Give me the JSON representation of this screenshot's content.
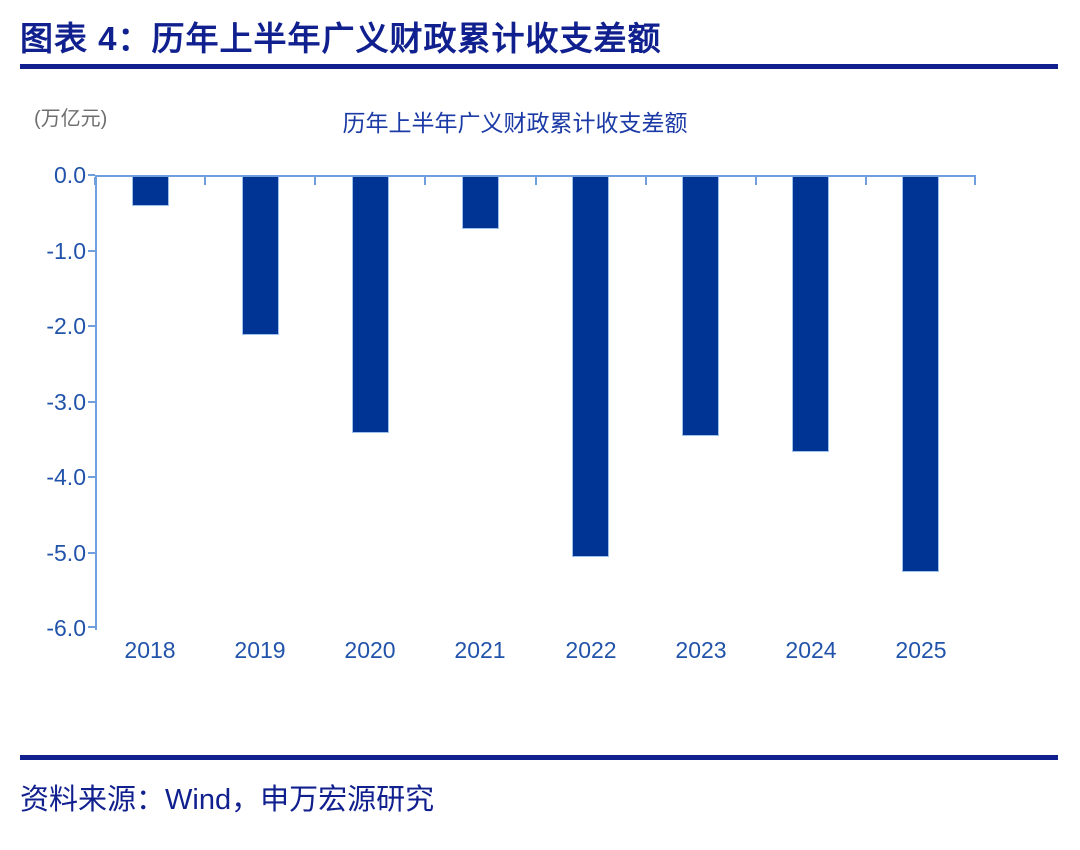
{
  "figure": {
    "caption": "图表 4：历年上半年广义财政累计收支差额"
  },
  "source": {
    "text": "资料来源：Wind，申万宏源研究"
  },
  "chart_data": {
    "type": "bar",
    "title": "历年上半年广义财政累计收支差额",
    "unit_label": "(万亿元)",
    "xlabel": "",
    "ylabel": "万亿元",
    "categories": [
      "2018",
      "2019",
      "2020",
      "2021",
      "2022",
      "2023",
      "2024",
      "2025"
    ],
    "values": [
      -0.4,
      -2.1,
      -3.4,
      -0.7,
      -5.05,
      -3.45,
      -3.65,
      -5.25
    ],
    "ylim": [
      -6.0,
      0.0
    ],
    "y_ticks": [
      "0.0",
      "-1.0",
      "-2.0",
      "-3.0",
      "-4.0",
      "-5.0",
      "-6.0"
    ],
    "grid": false,
    "legend": "none",
    "colors": {
      "caption_navy": "#11208F",
      "rule_navy": "#11208F",
      "chart_title_blue": "#1B3AA6",
      "tick_label_blue": "#2153AA",
      "unit_label_gray": "#6E6E6E",
      "bar_fill": "#003494",
      "bar_border": "#9DC1E8",
      "axis_line_light_blue": "#6F9FDC",
      "source_navy": "#11208F"
    }
  }
}
